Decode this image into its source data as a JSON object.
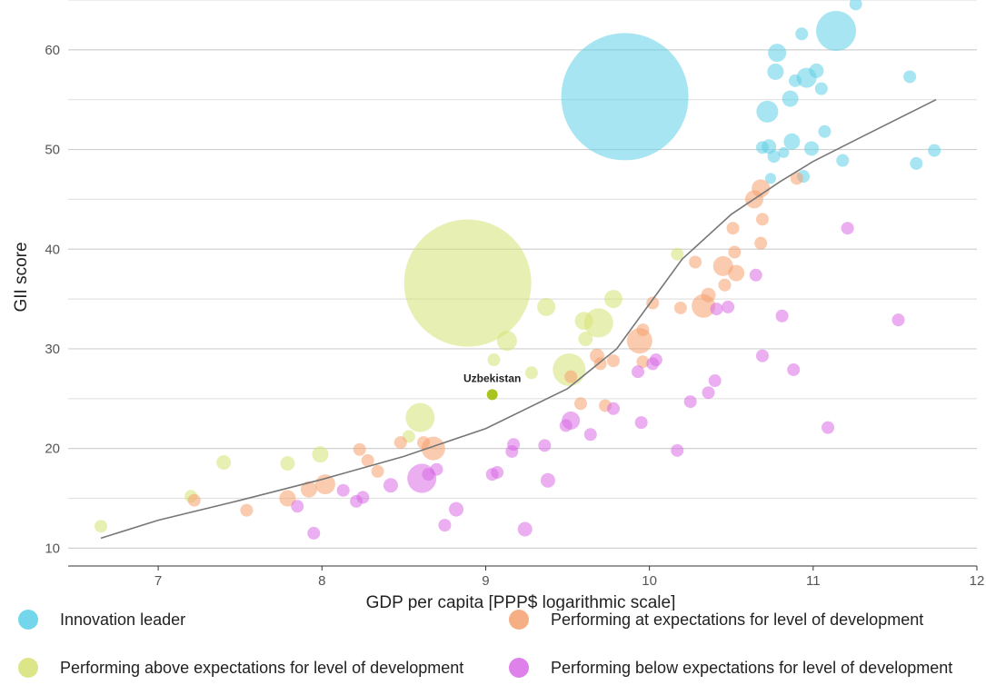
{
  "chart_data": {
    "type": "scatter",
    "title": "",
    "xlabel": "GDP per capita [PPP$ logarithmic scale]",
    "ylabel": "GII score",
    "xlim": [
      6.45,
      12
    ],
    "ylim": [
      8.3,
      65
    ],
    "x_ticks": [
      7,
      8,
      9,
      10,
      11,
      12
    ],
    "y_ticks": [
      10,
      20,
      30,
      40,
      50,
      60
    ],
    "grid": "horizontal",
    "legend_position": "bottom",
    "colors": {
      "leader": "#5ccfe6",
      "above": "#d6e273",
      "at": "#f5a06e",
      "below": "#d86be6",
      "trend": "#777777",
      "highlight": "#a9c41e"
    },
    "legend": [
      {
        "key": "leader",
        "label": "Innovation leader"
      },
      {
        "key": "at",
        "label": "Performing at expectations for level of development"
      },
      {
        "key": "above",
        "label": "Performing above expectations for level of development"
      },
      {
        "key": "below",
        "label": "Performing below expectations for level of development"
      }
    ],
    "annotations": [
      {
        "text": "Uzbekistan",
        "x": 9.04,
        "y": 25.4
      }
    ],
    "trend_line": {
      "x": [
        6.65,
        7,
        7.5,
        8,
        8.5,
        9,
        9.5,
        9.8,
        10,
        10.2,
        10.5,
        10.8,
        11,
        11.3,
        11.75
      ],
      "y": [
        11.0,
        12.8,
        14.8,
        16.9,
        19.2,
        22.0,
        26.0,
        30.0,
        34.5,
        39.0,
        43.5,
        46.8,
        48.8,
        51.3,
        55.0
      ]
    },
    "series": [
      {
        "name": "Innovation leader",
        "key": "leader",
        "points": [
          [
            9.85,
            55.3,
            70
          ],
          [
            11.14,
            61.9,
            22
          ],
          [
            11.26,
            64.6,
            7
          ],
          [
            10.72,
            53.8,
            12
          ],
          [
            10.78,
            59.7,
            10
          ],
          [
            10.77,
            57.8,
            9
          ],
          [
            10.96,
            57.2,
            11
          ],
          [
            11.02,
            57.9,
            8
          ],
          [
            10.89,
            56.9,
            7
          ],
          [
            10.86,
            55.1,
            9
          ],
          [
            10.93,
            61.6,
            7
          ],
          [
            11.05,
            56.1,
            7
          ],
          [
            10.87,
            50.8,
            9
          ],
          [
            10.99,
            50.1,
            8
          ],
          [
            10.69,
            50.2,
            7
          ],
          [
            10.73,
            50.3,
            8
          ],
          [
            10.76,
            49.3,
            7
          ],
          [
            10.82,
            49.7,
            6
          ],
          [
            11.07,
            51.8,
            7
          ],
          [
            11.59,
            57.3,
            7
          ],
          [
            11.18,
            48.9,
            7
          ],
          [
            11.63,
            48.6,
            7
          ],
          [
            11.74,
            49.9,
            7
          ],
          [
            10.94,
            47.3,
            7
          ],
          [
            10.74,
            47.1,
            6
          ]
        ]
      },
      {
        "name": "Performing above expectations for level of development",
        "key": "above",
        "points": [
          [
            8.89,
            36.6,
            70
          ],
          [
            9.37,
            34.2,
            10
          ],
          [
            9.69,
            32.6,
            16
          ],
          [
            9.6,
            32.8,
            10
          ],
          [
            9.78,
            35.0,
            10
          ],
          [
            9.61,
            31.0,
            8
          ],
          [
            9.51,
            27.9,
            18
          ],
          [
            9.13,
            30.8,
            11
          ],
          [
            9.05,
            28.9,
            7
          ],
          [
            9.28,
            27.6,
            7
          ],
          [
            9.04,
            25.4,
            6
          ],
          [
            8.6,
            23.1,
            16
          ],
          [
            7.99,
            19.4,
            9
          ],
          [
            7.79,
            18.5,
            8
          ],
          [
            7.4,
            18.6,
            8
          ],
          [
            7.2,
            15.2,
            7
          ],
          [
            6.65,
            12.2,
            7
          ],
          [
            10.17,
            39.5,
            7
          ],
          [
            8.53,
            21.2,
            7
          ]
        ]
      },
      {
        "name": "Performing at expectations for level of development",
        "key": "at",
        "points": [
          [
            10.68,
            46.1,
            10
          ],
          [
            10.64,
            45.0,
            10
          ],
          [
            10.69,
            43.0,
            7
          ],
          [
            10.51,
            42.1,
            7
          ],
          [
            10.68,
            40.6,
            7
          ],
          [
            10.52,
            39.7,
            7
          ],
          [
            10.28,
            38.7,
            7
          ],
          [
            10.45,
            38.3,
            11
          ],
          [
            10.53,
            37.6,
            9
          ],
          [
            10.46,
            36.4,
            7
          ],
          [
            10.36,
            35.4,
            8
          ],
          [
            10.33,
            34.3,
            13
          ],
          [
            10.19,
            34.1,
            7
          ],
          [
            10.02,
            34.6,
            7
          ],
          [
            9.96,
            31.9,
            7
          ],
          [
            9.94,
            30.8,
            14
          ],
          [
            9.78,
            28.8,
            7
          ],
          [
            9.68,
            29.3,
            8
          ],
          [
            9.7,
            28.5,
            7
          ],
          [
            9.96,
            28.7,
            7
          ],
          [
            9.52,
            27.2,
            7
          ],
          [
            9.58,
            24.5,
            7
          ],
          [
            9.73,
            24.3,
            7
          ],
          [
            8.62,
            20.6,
            7
          ],
          [
            8.68,
            20.0,
            13
          ],
          [
            8.48,
            20.6,
            7
          ],
          [
            8.23,
            19.9,
            7
          ],
          [
            8.28,
            18.8,
            7
          ],
          [
            8.34,
            17.7,
            7
          ],
          [
            8.02,
            16.4,
            11
          ],
          [
            7.92,
            15.9,
            9
          ],
          [
            7.79,
            15.0,
            9
          ],
          [
            7.22,
            14.8,
            7
          ],
          [
            7.54,
            13.8,
            7
          ],
          [
            10.9,
            47.1,
            7
          ]
        ]
      },
      {
        "name": "Performing below expectations for level of development",
        "key": "below",
        "points": [
          [
            11.21,
            42.1,
            7
          ],
          [
            11.52,
            32.9,
            7
          ],
          [
            10.81,
            33.3,
            7
          ],
          [
            10.65,
            37.4,
            7
          ],
          [
            10.48,
            34.2,
            7
          ],
          [
            10.41,
            34.0,
            7
          ],
          [
            10.69,
            29.3,
            7
          ],
          [
            10.88,
            27.9,
            7
          ],
          [
            11.09,
            22.1,
            7
          ],
          [
            10.4,
            26.8,
            7
          ],
          [
            10.36,
            25.6,
            7
          ],
          [
            10.25,
            24.7,
            7
          ],
          [
            9.93,
            27.7,
            7
          ],
          [
            10.04,
            28.9,
            7
          ],
          [
            10.02,
            28.5,
            7
          ],
          [
            9.95,
            22.6,
            7
          ],
          [
            9.78,
            24.0,
            7
          ],
          [
            9.52,
            22.8,
            10
          ],
          [
            9.49,
            22.3,
            7
          ],
          [
            9.64,
            21.4,
            7
          ],
          [
            10.17,
            19.8,
            7
          ],
          [
            9.36,
            20.3,
            7
          ],
          [
            9.17,
            20.4,
            7
          ],
          [
            9.16,
            19.7,
            7
          ],
          [
            9.38,
            16.8,
            8
          ],
          [
            9.07,
            17.6,
            7
          ],
          [
            9.04,
            17.4,
            7
          ],
          [
            8.61,
            17.0,
            16
          ],
          [
            8.7,
            17.9,
            7
          ],
          [
            8.65,
            17.4,
            7
          ],
          [
            8.42,
            16.3,
            8
          ],
          [
            8.25,
            15.1,
            7
          ],
          [
            8.21,
            14.7,
            7
          ],
          [
            8.13,
            15.8,
            7
          ],
          [
            7.85,
            14.2,
            7
          ],
          [
            8.82,
            13.9,
            8
          ],
          [
            8.75,
            12.3,
            7
          ],
          [
            9.24,
            11.9,
            8
          ],
          [
            7.95,
            11.5,
            7
          ]
        ]
      }
    ]
  }
}
